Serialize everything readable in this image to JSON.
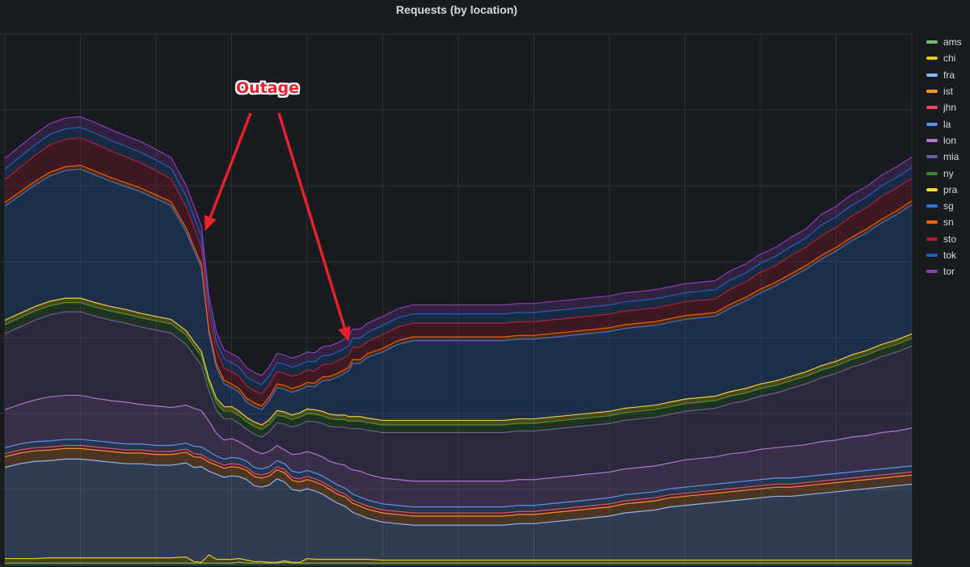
{
  "chart_data": {
    "type": "area",
    "stacked": true,
    "title": "Requests (by location)",
    "grid": true,
    "legend_position": "right",
    "annotation": {
      "text": "Outage",
      "color": "#e8212a",
      "points_to_x": [
        53,
        91
      ]
    },
    "x": [
      0,
      4,
      8,
      12,
      16,
      20,
      24,
      28,
      32,
      36,
      40,
      44,
      48,
      50,
      52,
      54,
      56,
      58,
      60,
      62,
      64,
      66,
      68,
      70,
      72,
      74,
      76,
      78,
      80,
      82,
      84,
      86,
      88,
      90,
      91,
      92,
      94,
      96,
      100,
      104,
      108,
      112,
      116,
      120,
      124,
      128,
      132,
      136,
      140,
      144,
      148,
      152,
      156,
      160,
      164,
      168,
      172,
      176,
      180,
      184,
      188,
      192,
      196,
      200,
      204,
      208,
      212,
      216,
      220,
      224,
      228,
      232,
      236,
      240
    ],
    "series": [
      {
        "name": "ams",
        "color": "#73bf69",
        "values": [
          3,
          3,
          3,
          3,
          3,
          3,
          3,
          3,
          3,
          3,
          3,
          3,
          3,
          3,
          3,
          3,
          3,
          3,
          3,
          4,
          3,
          3,
          3,
          3,
          3,
          4,
          3,
          3,
          3,
          3,
          3,
          3,
          3,
          3,
          3,
          3,
          3,
          3,
          3,
          3,
          3,
          3,
          3,
          3,
          3,
          3,
          3,
          3,
          3,
          3,
          3,
          3,
          3,
          3,
          3,
          3,
          3,
          3,
          3,
          3,
          3,
          3,
          3,
          3,
          3,
          3,
          3,
          3,
          3,
          3,
          3,
          3,
          3,
          3
        ]
      },
      {
        "name": "chi",
        "color": "#f2cc0c",
        "values": [
          6,
          6,
          6,
          7,
          7,
          7,
          7,
          7,
          7,
          7,
          7,
          7,
          8,
          2,
          1,
          11,
          5,
          5,
          5,
          5,
          4,
          2,
          2,
          1,
          1,
          2,
          1,
          1,
          6,
          5,
          5,
          5,
          5,
          5,
          5,
          5,
          5,
          5,
          4,
          4,
          4,
          4,
          4,
          4,
          4,
          4,
          4,
          4,
          4,
          4,
          4,
          4,
          4,
          4,
          4,
          4,
          4,
          4,
          4,
          4,
          4,
          4,
          4,
          4,
          4,
          4,
          4,
          4,
          4,
          4,
          4,
          4,
          4,
          4
        ]
      },
      {
        "name": "fra",
        "color": "#8ab8ff",
        "values": [
          120,
          125,
          128,
          128,
          130,
          130,
          128,
          126,
          124,
          124,
          122,
          122,
          124,
          124,
          126,
          110,
          112,
          108,
          110,
          108,
          106,
          100,
          98,
          102,
          110,
          104,
          96,
          94,
          92,
          90,
          86,
          80,
          74,
          70,
          66,
          62,
          58,
          54,
          50,
          48,
          46,
          46,
          46,
          46,
          46,
          46,
          46,
          48,
          48,
          50,
          52,
          54,
          56,
          58,
          62,
          64,
          66,
          70,
          72,
          74,
          76,
          78,
          80,
          82,
          84,
          84,
          86,
          88,
          90,
          92,
          94,
          96,
          98,
          100
        ]
      },
      {
        "name": "ist",
        "color": "#ff9830",
        "values": [
          14,
          14,
          14,
          14,
          14,
          14,
          14,
          14,
          14,
          14,
          14,
          14,
          14,
          14,
          12,
          12,
          12,
          12,
          12,
          12,
          12,
          12,
          12,
          12,
          12,
          12,
          12,
          12,
          12,
          12,
          12,
          12,
          12,
          12,
          12,
          12,
          12,
          12,
          12,
          12,
          12,
          12,
          12,
          12,
          12,
          12,
          12,
          12,
          12,
          12,
          12,
          12,
          12,
          12,
          12,
          12,
          12,
          12,
          12,
          12,
          12,
          12,
          12,
          12,
          12,
          12,
          12,
          12,
          12,
          12,
          12,
          12,
          12,
          12
        ]
      },
      {
        "name": "jhn",
        "color": "#f2495c",
        "values": [
          4,
          4,
          4,
          4,
          4,
          4,
          4,
          4,
          4,
          4,
          4,
          4,
          4,
          4,
          4,
          4,
          4,
          4,
          4,
          4,
          4,
          4,
          4,
          4,
          4,
          4,
          4,
          4,
          4,
          4,
          4,
          4,
          4,
          4,
          4,
          4,
          4,
          4,
          4,
          4,
          4,
          4,
          4,
          4,
          4,
          4,
          4,
          4,
          4,
          4,
          4,
          4,
          4,
          4,
          4,
          4,
          4,
          4,
          4,
          4,
          4,
          4,
          4,
          4,
          4,
          4,
          4,
          4,
          4,
          4,
          4,
          4,
          4,
          4
        ]
      },
      {
        "name": "la",
        "color": "#5794f2",
        "values": [
          8,
          8,
          8,
          8,
          8,
          8,
          8,
          8,
          8,
          8,
          8,
          8,
          8,
          10,
          10,
          10,
          8,
          8,
          8,
          8,
          8,
          8,
          8,
          8,
          8,
          8,
          8,
          8,
          8,
          8,
          8,
          8,
          8,
          8,
          8,
          8,
          8,
          8,
          8,
          8,
          8,
          8,
          8,
          8,
          8,
          8,
          8,
          8,
          8,
          8,
          8,
          8,
          8,
          8,
          8,
          8,
          8,
          8,
          8,
          8,
          8,
          8,
          8,
          8,
          8,
          8,
          8,
          8,
          8,
          8,
          8,
          8,
          8,
          8
        ]
      },
      {
        "name": "lon",
        "color": "#b877d9",
        "values": [
          50,
          52,
          55,
          58,
          58,
          58,
          56,
          55,
          55,
          52,
          52,
          50,
          50,
          50,
          48,
          40,
          30,
          25,
          25,
          22,
          20,
          22,
          20,
          20,
          20,
          18,
          22,
          25,
          25,
          25,
          25,
          25,
          28,
          30,
          30,
          32,
          34,
          34,
          34,
          34,
          34,
          34,
          34,
          34,
          34,
          34,
          34,
          34,
          34,
          34,
          34,
          34,
          34,
          34,
          34,
          34,
          34,
          34,
          36,
          36,
          36,
          38,
          38,
          40,
          40,
          42,
          42,
          44,
          44,
          46,
          46,
          48,
          48,
          50
        ]
      },
      {
        "name": "mia",
        "color": "#705da0",
        "values": [
          100,
          102,
          105,
          108,
          110,
          110,
          108,
          106,
          104,
          102,
          100,
          98,
          80,
          70,
          60,
          40,
          30,
          28,
          26,
          24,
          22,
          22,
          22,
          26,
          30,
          34,
          36,
          38,
          40,
          42,
          44,
          46,
          48,
          50,
          52,
          54,
          56,
          58,
          60,
          62,
          64,
          64,
          64,
          64,
          64,
          64,
          64,
          64,
          64,
          64,
          64,
          64,
          64,
          64,
          64,
          64,
          64,
          64,
          64,
          64,
          64,
          66,
          68,
          70,
          72,
          76,
          80,
          84,
          88,
          92,
          96,
          100,
          104,
          108
        ]
      },
      {
        "name": "ny",
        "color": "#37872d",
        "values": [
          12,
          12,
          12,
          12,
          12,
          12,
          12,
          12,
          12,
          12,
          12,
          12,
          12,
          12,
          12,
          10,
          10,
          10,
          10,
          10,
          10,
          10,
          10,
          10,
          10,
          10,
          10,
          10,
          10,
          10,
          10,
          10,
          10,
          10,
          10,
          10,
          10,
          10,
          10,
          10,
          10,
          10,
          10,
          10,
          10,
          10,
          10,
          10,
          10,
          10,
          10,
          10,
          10,
          10,
          10,
          10,
          10,
          10,
          10,
          10,
          10,
          10,
          10,
          10,
          10,
          10,
          10,
          10,
          10,
          10,
          10,
          10,
          10,
          10
        ]
      },
      {
        "name": "pra",
        "color": "#fade2a",
        "values": [
          6,
          6,
          6,
          6,
          6,
          6,
          6,
          6,
          6,
          6,
          6,
          6,
          6,
          6,
          6,
          6,
          6,
          6,
          6,
          6,
          6,
          6,
          6,
          6,
          6,
          6,
          6,
          6,
          6,
          6,
          6,
          6,
          6,
          6,
          6,
          6,
          6,
          6,
          6,
          6,
          6,
          6,
          6,
          6,
          6,
          6,
          6,
          6,
          6,
          6,
          6,
          6,
          6,
          6,
          6,
          6,
          6,
          6,
          6,
          6,
          6,
          6,
          6,
          6,
          6,
          6,
          6,
          6,
          6,
          6,
          6,
          6,
          6,
          6
        ]
      },
      {
        "name": "sg",
        "color": "#3274d9",
        "values": [
          150,
          155,
          160,
          165,
          168,
          170,
          168,
          165,
          162,
          160,
          155,
          150,
          130,
          120,
          110,
          60,
          40,
          30,
          25,
          25,
          20,
          20,
          20,
          25,
          30,
          30,
          30,
          30,
          30,
          30,
          40,
          45,
          50,
          55,
          60,
          70,
          70,
          80,
          90,
          100,
          105,
          105,
          105,
          105,
          105,
          105,
          105,
          105,
          105,
          105,
          105,
          105,
          105,
          105,
          105,
          105,
          105,
          105,
          105,
          105,
          105,
          110,
          115,
          120,
          125,
          130,
          135,
          140,
          145,
          150,
          155,
          160,
          165,
          170
        ]
      },
      {
        "name": "sn",
        "color": "#fa6400",
        "values": [
          5,
          5,
          5,
          5,
          5,
          5,
          5,
          5,
          5,
          5,
          5,
          5,
          5,
          5,
          5,
          5,
          5,
          5,
          5,
          5,
          5,
          5,
          5,
          5,
          5,
          5,
          5,
          5,
          5,
          5,
          5,
          5,
          5,
          5,
          5,
          5,
          5,
          5,
          5,
          5,
          5,
          5,
          5,
          5,
          5,
          5,
          5,
          5,
          5,
          5,
          5,
          5,
          5,
          5,
          5,
          5,
          5,
          5,
          5,
          5,
          5,
          5,
          5,
          5,
          5,
          5,
          5,
          5,
          5,
          5,
          5,
          5,
          5,
          5
        ]
      },
      {
        "name": "sto",
        "color": "#c4162a",
        "values": [
          30,
          32,
          34,
          36,
          36,
          36,
          36,
          35,
          34,
          33,
          32,
          30,
          28,
          26,
          22,
          20,
          18,
          16,
          16,
          16,
          16,
          16,
          16,
          16,
          16,
          16,
          16,
          16,
          16,
          16,
          16,
          16,
          16,
          16,
          16,
          16,
          16,
          16,
          18,
          18,
          18,
          18,
          18,
          18,
          18,
          18,
          18,
          18,
          18,
          18,
          18,
          18,
          18,
          18,
          18,
          18,
          18,
          18,
          18,
          18,
          18,
          20,
          20,
          22,
          22,
          24,
          24,
          26,
          26,
          28,
          28,
          30,
          30,
          30
        ]
      },
      {
        "name": "tok",
        "color": "#1f60c4",
        "values": [
          14,
          14,
          14,
          14,
          14,
          14,
          14,
          14,
          14,
          14,
          14,
          14,
          14,
          14,
          14,
          12,
          12,
          12,
          12,
          12,
          12,
          12,
          12,
          12,
          12,
          12,
          12,
          12,
          12,
          12,
          12,
          12,
          12,
          12,
          12,
          12,
          12,
          12,
          12,
          12,
          12,
          12,
          12,
          12,
          12,
          12,
          12,
          12,
          12,
          12,
          12,
          12,
          12,
          12,
          12,
          12,
          12,
          12,
          12,
          12,
          12,
          12,
          12,
          12,
          12,
          12,
          12,
          14,
          14,
          14,
          14,
          14,
          14,
          14
        ]
      },
      {
        "name": "tor",
        "color": "#8f3bb8",
        "values": [
          14,
          14,
          14,
          14,
          14,
          14,
          14,
          14,
          14,
          14,
          14,
          14,
          14,
          14,
          14,
          12,
          12,
          12,
          12,
          12,
          12,
          12,
          12,
          12,
          12,
          12,
          12,
          12,
          12,
          12,
          12,
          12,
          12,
          12,
          12,
          12,
          12,
          12,
          12,
          12,
          12,
          12,
          12,
          12,
          12,
          12,
          12,
          12,
          12,
          12,
          12,
          12,
          12,
          12,
          12,
          12,
          12,
          12,
          12,
          12,
          12,
          12,
          12,
          12,
          12,
          12,
          12,
          14,
          14,
          14,
          14,
          14,
          14,
          14
        ]
      }
    ],
    "ylim": [
      0,
      700
    ]
  }
}
